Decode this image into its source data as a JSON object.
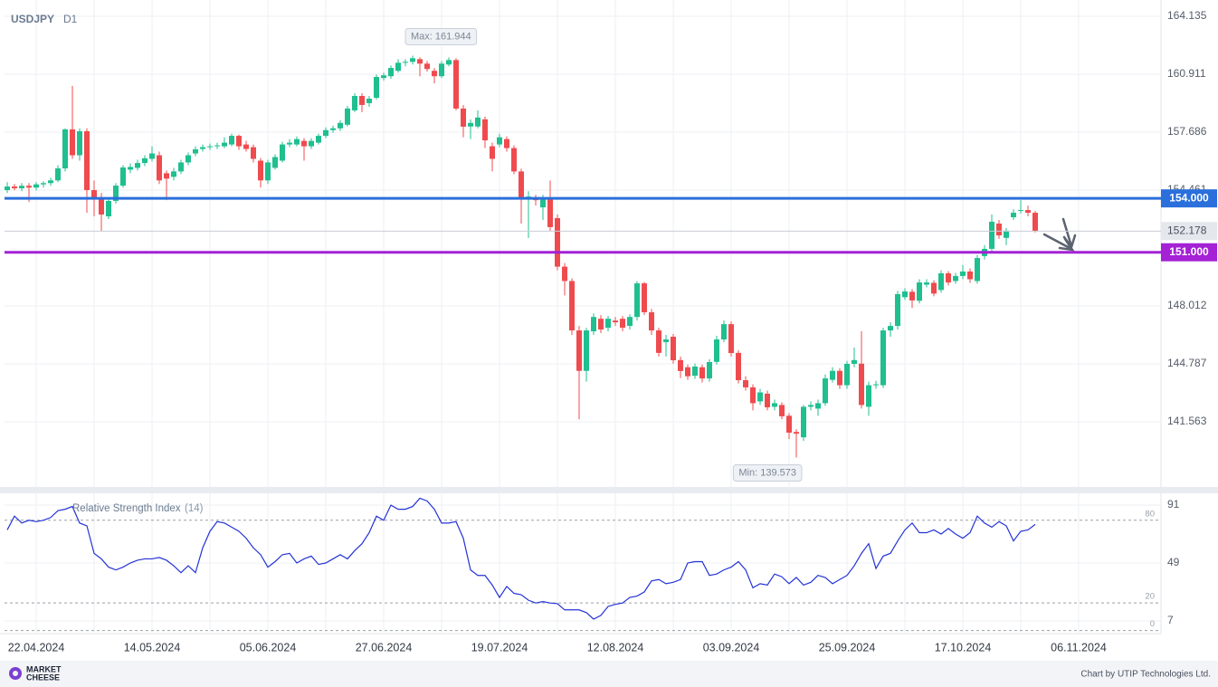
{
  "chart_data": [
    {
      "type": "candlestick",
      "title": "USDJPY",
      "timeframe": "D1",
      "categories": [
        null,
        null,
        null,
        null,
        "22.04.2024",
        null,
        null,
        null,
        null,
        null,
        null,
        null,
        null,
        null,
        null,
        null,
        null,
        null,
        null,
        null,
        "14.05.2024",
        null,
        null,
        null,
        null,
        null,
        null,
        null,
        null,
        null,
        null,
        null,
        null,
        null,
        null,
        null,
        "05.06.2024",
        null,
        null,
        null,
        null,
        null,
        null,
        null,
        null,
        null,
        null,
        null,
        null,
        null,
        null,
        null,
        "27.06.2024",
        null,
        null,
        null,
        null,
        null,
        null,
        null,
        null,
        null,
        null,
        null,
        null,
        null,
        null,
        null,
        "19.07.2024",
        null,
        null,
        null,
        null,
        null,
        null,
        null,
        null,
        null,
        null,
        null,
        null,
        null,
        null,
        null,
        "12.08.2024",
        null,
        null,
        null,
        null,
        null,
        null,
        null,
        null,
        null,
        null,
        null,
        null,
        null,
        null,
        null,
        "03.09.2024",
        null,
        null,
        null,
        null,
        null,
        null,
        null,
        null,
        null,
        null,
        null,
        null,
        null,
        null,
        null,
        "25.09.2024",
        null,
        null,
        null,
        null,
        null,
        null,
        null,
        null,
        null,
        null,
        null,
        null,
        null,
        null,
        null,
        "17.10.2024",
        null,
        null,
        null,
        null,
        null,
        null,
        null,
        null,
        null,
        null,
        null,
        null,
        null,
        null,
        null,
        "06.11.2024",
        null
      ],
      "open": [
        154.46,
        154.66,
        154.56,
        154.7,
        154.6,
        154.78,
        154.85,
        155.0,
        155.67,
        157.84,
        156.4,
        157.74,
        154.46,
        153.96,
        153.0,
        153.86,
        154.71,
        155.6,
        155.7,
        155.97,
        156.2,
        156.4,
        155.4,
        155.2,
        155.5,
        156.0,
        156.5,
        156.75,
        156.85,
        156.9,
        156.9,
        157.0,
        157.48,
        157.0,
        156.85,
        156.1,
        155.0,
        155.7,
        156.1,
        157.0,
        157.0,
        157.2,
        156.9,
        157.1,
        157.48,
        157.8,
        157.9,
        158.1,
        158.9,
        159.7,
        159.3,
        159.6,
        160.7,
        160.8,
        161.1,
        161.55,
        161.6,
        161.75,
        161.5,
        161.1,
        160.8,
        161.45,
        161.7,
        159.0,
        158.0,
        158.0,
        158.4,
        156.9,
        157.0,
        157.3,
        156.8,
        155.5,
        154.0,
        154.0,
        153.5,
        154.0,
        152.9,
        150.2,
        149.4,
        146.65,
        144.4,
        146.6,
        147.3,
        146.8,
        147.2,
        147.3,
        146.9,
        147.4,
        149.27,
        147.66,
        146.65,
        146.0,
        146.3,
        145.0,
        144.6,
        144.13,
        144.6,
        143.98,
        144.9,
        146.15,
        147.0,
        145.4,
        143.88,
        143.48,
        142.7,
        143.13,
        142.4,
        142.5,
        141.9,
        141.0,
        140.7,
        142.4,
        142.3,
        142.6,
        143.9,
        144.4,
        143.6,
        144.79,
        144.8,
        142.4,
        143.6,
        143.6,
        146.65,
        146.9,
        148.5,
        148.8,
        148.3,
        149.2,
        149.3,
        148.9,
        149.83,
        149.4,
        149.68,
        149.93,
        149.4,
        150.79,
        151.19,
        152.6,
        151.8,
        152.95,
        153.3,
        153.35,
        153.2,
        null,
        null,
        null,
        null,
        null,
        null,
        null
      ],
      "high": [
        154.9,
        154.8,
        154.85,
        154.85,
        154.9,
        154.95,
        155.15,
        155.85,
        157.9,
        160.26,
        157.9,
        157.9,
        155.0,
        154.3,
        153.95,
        154.85,
        155.85,
        155.95,
        156.15,
        156.4,
        156.9,
        156.6,
        155.55,
        155.7,
        156.15,
        156.55,
        156.9,
        157.0,
        157.05,
        157.1,
        157.4,
        157.6,
        157.55,
        157.2,
        157.0,
        156.25,
        156.15,
        156.45,
        157.15,
        157.3,
        157.45,
        157.35,
        157.35,
        157.6,
        157.95,
        158.05,
        158.35,
        159.15,
        159.85,
        159.85,
        159.7,
        160.9,
        161.0,
        161.4,
        161.75,
        161.75,
        161.944,
        161.85,
        161.65,
        161.25,
        161.65,
        161.85,
        161.8,
        159.2,
        158.4,
        158.9,
        158.55,
        157.1,
        157.6,
        157.45,
        156.95,
        155.65,
        154.4,
        154.2,
        154.2,
        155.0,
        153.1,
        150.4,
        149.55,
        146.9,
        146.8,
        147.6,
        147.5,
        147.45,
        147.4,
        147.45,
        147.55,
        149.4,
        149.35,
        147.85,
        146.8,
        146.4,
        146.45,
        145.2,
        144.75,
        144.8,
        144.75,
        145.05,
        146.35,
        147.2,
        147.15,
        145.55,
        144.1,
        143.65,
        143.4,
        143.3,
        142.8,
        142.65,
        142.05,
        141.15,
        142.5,
        142.7,
        142.8,
        144.2,
        144.6,
        144.55,
        144.95,
        145.7,
        146.6,
        143.8,
        143.85,
        146.8,
        147.1,
        148.85,
        149.0,
        148.95,
        149.5,
        149.5,
        149.45,
        150.0,
        149.95,
        149.85,
        150.3,
        150.1,
        150.85,
        151.4,
        153.1,
        152.8,
        152.35,
        153.4,
        153.9,
        153.6,
        153.3,
        null,
        null,
        null,
        null,
        null,
        null,
        null
      ],
      "low": [
        154.3,
        154.45,
        154.4,
        153.8,
        154.45,
        154.6,
        154.7,
        154.9,
        155.5,
        156.2,
        156.1,
        153.2,
        153.0,
        152.2,
        152.85,
        153.7,
        154.6,
        155.4,
        155.55,
        155.8,
        156.05,
        154.8,
        153.9,
        155.0,
        155.35,
        155.85,
        156.35,
        156.6,
        156.7,
        156.75,
        156.8,
        156.9,
        156.7,
        156.6,
        156.0,
        154.6,
        154.8,
        155.6,
        156.0,
        156.85,
        156.9,
        156.1,
        156.75,
        157.0,
        157.35,
        157.65,
        157.75,
        158.0,
        158.8,
        158.8,
        159.1,
        159.5,
        160.55,
        160.65,
        161.0,
        161.35,
        161.45,
        160.8,
        161.05,
        160.4,
        160.7,
        161.35,
        158.9,
        157.4,
        157.3,
        157.9,
        156.8,
        155.5,
        156.85,
        156.6,
        155.35,
        152.6,
        151.8,
        153.6,
        152.8,
        152.2,
        150.0,
        148.6,
        146.4,
        141.7,
        143.8,
        146.4,
        146.5,
        146.6,
        146.9,
        146.6,
        146.7,
        147.2,
        147.5,
        146.4,
        145.2,
        145.2,
        144.8,
        144.0,
        143.9,
        143.95,
        143.75,
        143.8,
        144.75,
        146.0,
        145.2,
        143.7,
        143.3,
        142.2,
        142.5,
        142.2,
        142.2,
        141.7,
        140.6,
        139.573,
        140.5,
        142.2,
        141.9,
        142.45,
        143.75,
        143.4,
        143.4,
        144.6,
        142.3,
        141.9,
        143.4,
        143.45,
        146.3,
        146.7,
        148.35,
        147.9,
        148.15,
        149.05,
        148.55,
        148.75,
        149.15,
        149.25,
        149.5,
        149.3,
        149.25,
        150.6,
        151.0,
        151.75,
        151.4,
        152.8,
        153.15,
        153.0,
        152.1,
        null,
        null,
        null,
        null,
        null,
        null,
        null
      ],
      "close": [
        154.66,
        154.56,
        154.7,
        154.6,
        154.78,
        154.85,
        155.0,
        155.67,
        157.84,
        156.4,
        157.74,
        154.46,
        153.96,
        153.1,
        153.86,
        154.71,
        155.72,
        155.75,
        155.97,
        156.23,
        156.5,
        155.0,
        155.1,
        155.5,
        156.0,
        156.4,
        156.73,
        156.85,
        156.9,
        156.95,
        157.1,
        157.48,
        156.9,
        156.75,
        156.2,
        155.0,
        156.0,
        156.3,
        157.0,
        157.1,
        157.3,
        156.9,
        157.2,
        157.48,
        157.8,
        157.9,
        158.2,
        159.0,
        159.7,
        159.2,
        159.55,
        160.76,
        160.85,
        161.26,
        161.55,
        161.6,
        161.8,
        161.5,
        161.2,
        160.8,
        161.5,
        161.7,
        159.0,
        157.99,
        158.2,
        158.5,
        157.23,
        156.2,
        157.4,
        156.8,
        155.5,
        154.0,
        154.1,
        153.9,
        154.0,
        152.4,
        150.2,
        149.4,
        146.65,
        144.4,
        146.65,
        147.4,
        146.7,
        147.3,
        147.1,
        146.8,
        147.4,
        149.27,
        147.66,
        146.65,
        145.4,
        146.15,
        144.99,
        144.39,
        144.1,
        144.64,
        143.98,
        144.89,
        146.15,
        147.0,
        145.39,
        143.88,
        143.48,
        142.6,
        143.2,
        142.37,
        142.6,
        141.87,
        140.96,
        140.9,
        142.4,
        142.5,
        142.6,
        143.98,
        144.4,
        143.6,
        144.79,
        145.0,
        142.5,
        143.6,
        143.65,
        146.65,
        146.9,
        148.67,
        148.82,
        148.32,
        149.32,
        149.32,
        148.7,
        149.83,
        149.32,
        149.68,
        149.93,
        149.5,
        150.68,
        151.19,
        152.7,
        151.94,
        152.2,
        153.2,
        153.35,
        153.2,
        152.178,
        null,
        null,
        null,
        null,
        null,
        null,
        null
      ],
      "up_color": "#1fbf8f",
      "down_color": "#ef4b4f",
      "ylim": [
        138.34,
        164.79
      ],
      "yticks": [
        164.135,
        160.911,
        157.686,
        154.461,
        148.012,
        144.787,
        141.563
      ],
      "grid": true,
      "levels": [
        {
          "value": 154,
          "label": "154.000",
          "color": "#2a6fdb"
        },
        {
          "value": 151,
          "label": "151.000",
          "color": "#a421d6"
        }
      ],
      "last_price": 152.178,
      "annotations": [
        "Max: 161.944",
        "Min: 139.573"
      ]
    },
    {
      "type": "line",
      "title": "Relative Strength Index",
      "period": "(14)",
      "color": "#2433d6",
      "values": [
        73,
        83,
        78,
        80,
        79,
        80,
        82,
        87,
        88,
        90,
        78,
        76,
        56,
        52,
        46,
        44,
        46,
        49,
        51,
        52,
        52,
        53,
        51,
        47,
        42,
        47,
        42,
        60,
        72,
        79,
        78,
        75,
        72,
        67,
        60,
        55,
        46,
        50,
        55,
        56,
        49,
        52,
        54,
        48,
        49,
        52,
        55,
        52,
        58,
        63,
        71,
        83,
        80,
        91,
        88,
        88,
        90,
        96,
        94,
        88,
        78,
        78,
        79,
        67,
        44,
        40,
        40,
        33,
        24,
        32,
        27,
        26,
        22,
        20,
        21,
        20,
        19.5,
        15,
        15,
        15,
        13,
        8.3,
        11,
        17.5,
        19,
        20,
        24,
        25,
        28,
        36,
        37,
        34,
        35,
        37,
        49,
        50,
        50,
        40,
        41,
        44,
        46,
        50,
        44,
        31,
        34,
        33,
        41,
        39,
        34,
        38.5,
        33,
        35,
        40,
        38.5,
        34,
        37,
        40,
        47,
        56,
        63,
        45,
        54,
        56,
        65,
        73,
        78,
        71,
        71,
        73,
        70,
        74,
        70,
        67,
        71,
        83,
        78,
        75,
        79,
        76,
        65,
        72,
        73,
        77,
        null,
        null,
        null,
        null,
        null,
        null,
        null
      ],
      "ylim": [
        -0.9,
        97.6
      ],
      "yticks": [
        91,
        49,
        7
      ],
      "levels": [
        80,
        20,
        0
      ],
      "grid": true
    }
  ],
  "footer": {
    "brand": [
      "MARKET",
      "CHEESE"
    ],
    "credit": "Chart by UTIP Technologies Ltd."
  }
}
